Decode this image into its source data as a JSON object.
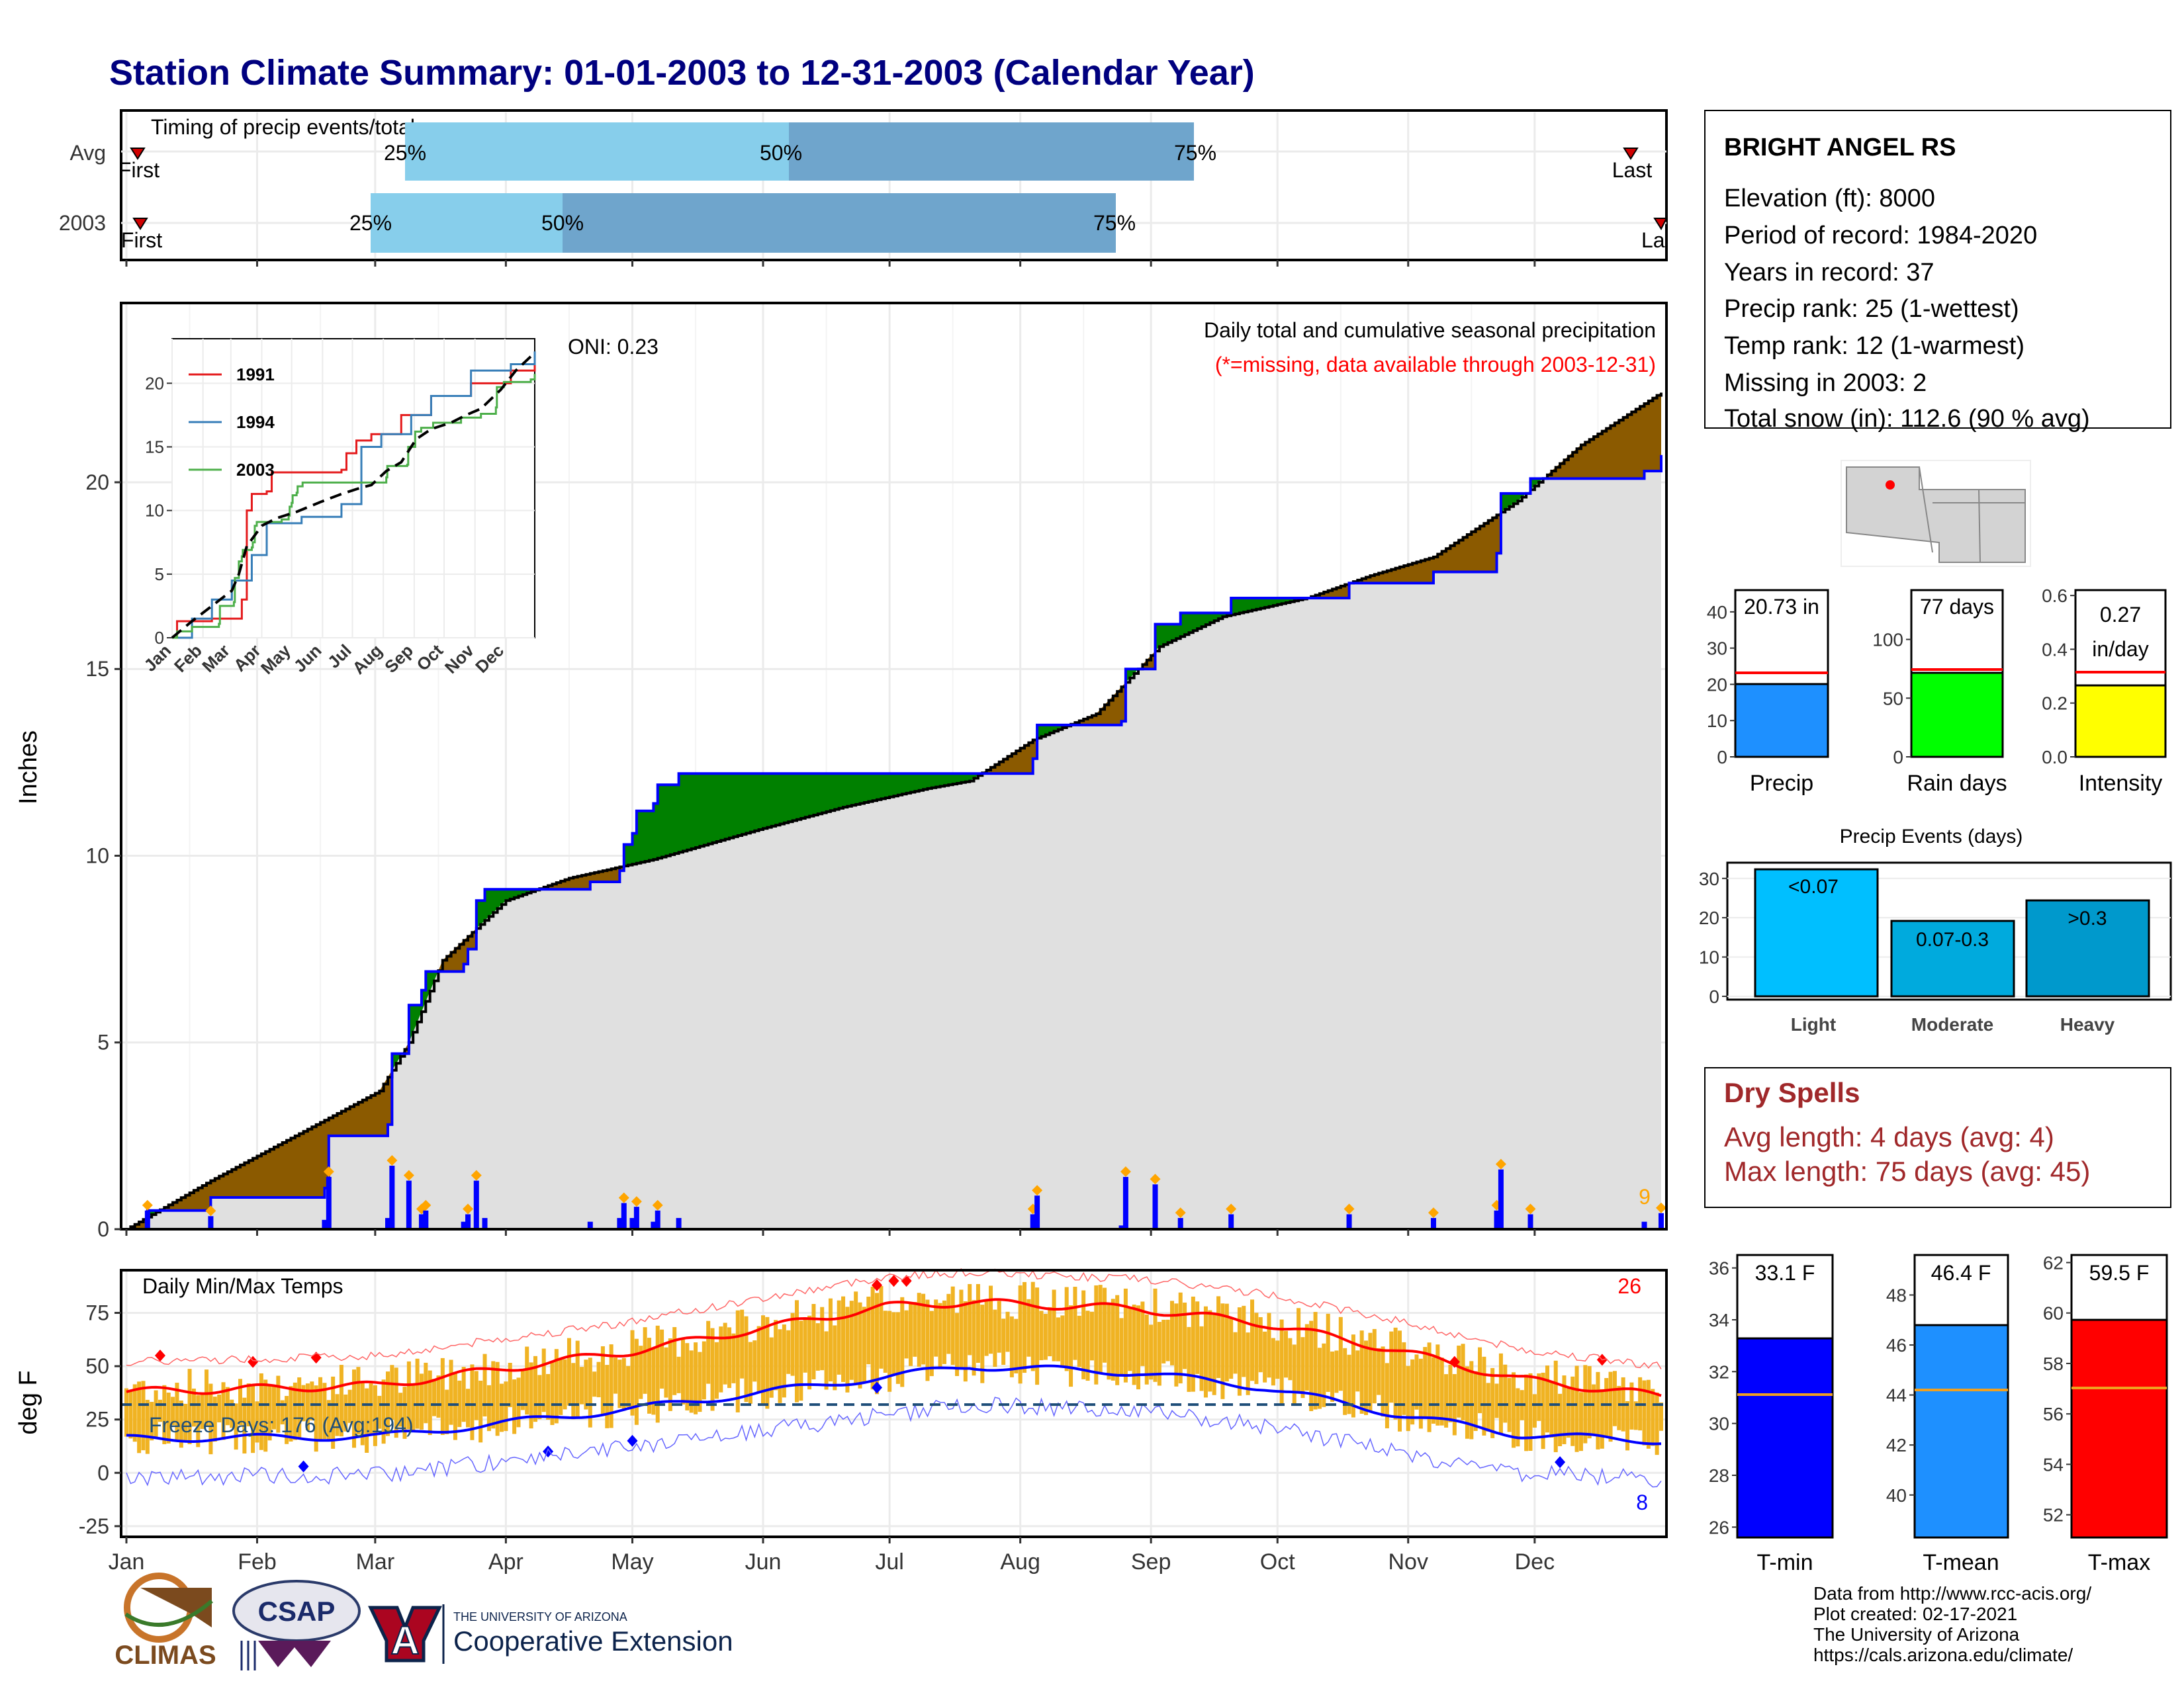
{
  "title": "Station Climate Summary: 01-01-2003 to 12-31-2003 (Calendar Year)",
  "colors": {
    "title": "#00007f",
    "avg_fill": "#8b5a00",
    "above_fill": "#008000",
    "cum_line": "#0000ff",
    "base_fill": "#e0e0e0",
    "bar_light": "#87ceeb",
    "bar_dark": "#6fa5cc",
    "dry": "#a0282a",
    "temp_band": "#f0b323",
    "tmax": "#ff0000",
    "tmin": "#0000ff"
  },
  "timing": {
    "title": "Timing of precip events/totals",
    "rows": [
      {
        "label": "Avg",
        "first": "First",
        "last": "Last",
        "q25": "25%",
        "q50": "50%",
        "q75": "75%"
      },
      {
        "label": "2003",
        "first": "First",
        "last": "Last",
        "q25": "25%",
        "q50": "50%",
        "q75": "75%"
      }
    ]
  },
  "precip": {
    "ylabel": "Inches",
    "oni": "ONI: 0.23",
    "subtitle": "Daily total and cumulative seasonal precipitation",
    "missing_note": "(*=missing, data available through 2003-12-31)",
    "max_marker": "9"
  },
  "inset": {
    "legend": [
      "1991",
      "1994",
      "2003"
    ],
    "months": [
      "Jan",
      "Feb",
      "Mar",
      "Apr",
      "May",
      "Jun",
      "Jul",
      "Aug",
      "Sep",
      "Oct",
      "Nov",
      "Dec"
    ]
  },
  "temps": {
    "ylabel": "deg F",
    "title": "Daily Min/Max Temps",
    "freeze": "Freeze Days: 176 (Avg:194)",
    "max_count": "26",
    "min_count": "8"
  },
  "months": [
    "Jan",
    "Feb",
    "Mar",
    "Apr",
    "May",
    "Jun",
    "Jul",
    "Aug",
    "Sep",
    "Oct",
    "Nov",
    "Dec"
  ],
  "station": {
    "name": "BRIGHT ANGEL RS",
    "lines": [
      "Elevation (ft): 8000",
      "Period of record: 1984-2020",
      "Years in record: 37",
      "Precip rank: 25 (1-wettest)",
      "Temp rank: 12 (1-warmest)",
      "Missing in 2003: 2",
      "Total snow (in): 112.6 (90 % avg)"
    ]
  },
  "totals": {
    "precip": {
      "label": "Precip",
      "text": "20.73 in",
      "color": "#1e90ff"
    },
    "rain": {
      "label": "Rain days",
      "text": "77 days",
      "color": "#00ff00"
    },
    "intensity": {
      "label": "Intensity",
      "text1": "0.27",
      "text2": "in/day",
      "color": "#ffff00"
    }
  },
  "events": {
    "title": "Precip Events (days)",
    "bars": [
      {
        "label": "Light",
        "text": "<0.07",
        "color": "#00bfff"
      },
      {
        "label": "Moderate",
        "text": "0.07-0.3",
        "color": "#00aadd"
      },
      {
        "label": "Heavy",
        "text": ">0.3",
        "color": "#0099cc"
      }
    ]
  },
  "dry": {
    "title": "Dry Spells",
    "avg": "Avg length: 4 days (avg: 4)",
    "max": "Max length: 75 days (avg: 45)"
  },
  "temp_summary": {
    "tmin": {
      "label": "T-min",
      "text": "33.1 F",
      "color": "#0000ff"
    },
    "tmean": {
      "label": "T-mean",
      "text": "46.4 F",
      "color": "#1e90ff"
    },
    "tmax": {
      "label": "T-max",
      "text": "59.5 F",
      "color": "#ff0000"
    }
  },
  "footer": [
    "Data from http://www.rcc-acis.org/",
    "Plot created: 02-17-2021",
    "The University of Arizona",
    "https://cals.arizona.edu/climate/"
  ],
  "logos": {
    "climas": "CLIMAS",
    "csap": "CSAP",
    "ua_small": "THE UNIVERSITY OF ARIZONA",
    "ua_big": "Cooperative Extension"
  },
  "chart_data": [
    {
      "type": "area",
      "title": "Daily total and cumulative seasonal precipitation",
      "ylabel": "Inches",
      "ylim": [
        0,
        24.8
      ],
      "x": [
        "Jan",
        "Feb",
        "Mar",
        "Apr",
        "May",
        "Jun",
        "Jul",
        "Aug",
        "Sep",
        "Oct",
        "Nov",
        "Dec"
      ],
      "series": [
        {
          "name": "2003 cumulative",
          "points": [
            [
              0,
              0
            ],
            [
              5,
              0.5
            ],
            [
              20,
              0.85
            ],
            [
              47,
              1.1
            ],
            [
              48,
              2.5
            ],
            [
              62,
              2.8
            ],
            [
              63,
              4.7
            ],
            [
              67,
              6.0
            ],
            [
              70,
              6.4
            ],
            [
              71,
              6.9
            ],
            [
              80,
              7.1
            ],
            [
              81,
              7.5
            ],
            [
              83,
              8.8
            ],
            [
              85,
              9.1
            ],
            [
              110,
              9.3
            ],
            [
              117,
              9.6
            ],
            [
              118,
              10.3
            ],
            [
              120,
              10.6
            ],
            [
              121,
              11.2
            ],
            [
              125,
              11.4
            ],
            [
              126,
              11.9
            ],
            [
              131,
              12.2
            ],
            [
              202,
              12.2
            ],
            [
              215,
              12.6
            ],
            [
              216,
              13.5
            ],
            [
              236,
              13.6
            ],
            [
              237,
              15.0
            ],
            [
              244,
              16.2
            ],
            [
              250,
              16.5
            ],
            [
              262,
              16.9
            ],
            [
              290,
              17.3
            ],
            [
              310,
              17.6
            ],
            [
              325,
              18.1
            ],
            [
              326,
              19.7
            ],
            [
              333,
              20.1
            ],
            [
              360,
              20.3
            ],
            [
              364,
              20.73
            ]
          ]
        },
        {
          "name": "Avg cumulative",
          "points": [
            [
              0,
              0
            ],
            [
              20,
              1.3
            ],
            [
              40,
              2.5
            ],
            [
              60,
              3.7
            ],
            [
              67,
              5.0
            ],
            [
              75,
              7.2
            ],
            [
              90,
              8.8
            ],
            [
              105,
              9.4
            ],
            [
              125,
              9.9
            ],
            [
              150,
              10.7
            ],
            [
              170,
              11.3
            ],
            [
              190,
              11.8
            ],
            [
              200,
              12.0
            ],
            [
              215,
              13.1
            ],
            [
              230,
              13.8
            ],
            [
              245,
              15.6
            ],
            [
              260,
              16.4
            ],
            [
              280,
              16.9
            ],
            [
              295,
              17.5
            ],
            [
              310,
              18.0
            ],
            [
              330,
              19.5
            ],
            [
              345,
              21.0
            ],
            [
              364,
              22.4
            ]
          ]
        }
      ]
    },
    {
      "type": "line",
      "title": "Daily Min/Max Temps",
      "ylabel": "deg F",
      "ylim": [
        -30,
        95
      ],
      "x": [
        "Jan",
        "Feb",
        "Mar",
        "Apr",
        "May",
        "Jun",
        "Jul",
        "Aug",
        "Sep",
        "Oct",
        "Nov",
        "Dec"
      ],
      "series": [
        {
          "name": "Avg max",
          "points": [
            [
              0,
              38
            ],
            [
              60,
              41
            ],
            [
              120,
              57
            ],
            [
              180,
              78
            ],
            [
              200,
              80
            ],
            [
              240,
              77
            ],
            [
              270,
              70
            ],
            [
              300,
              58
            ],
            [
              330,
              44
            ],
            [
              364,
              36
            ]
          ]
        },
        {
          "name": "Avg min",
          "points": [
            [
              0,
              16
            ],
            [
              60,
              17
            ],
            [
              120,
              30
            ],
            [
              180,
              45
            ],
            [
              200,
              50
            ],
            [
              240,
              47
            ],
            [
              270,
              40
            ],
            [
              300,
              28
            ],
            [
              330,
              18
            ],
            [
              364,
              15
            ]
          ]
        }
      ],
      "hline": 32
    }
  ]
}
